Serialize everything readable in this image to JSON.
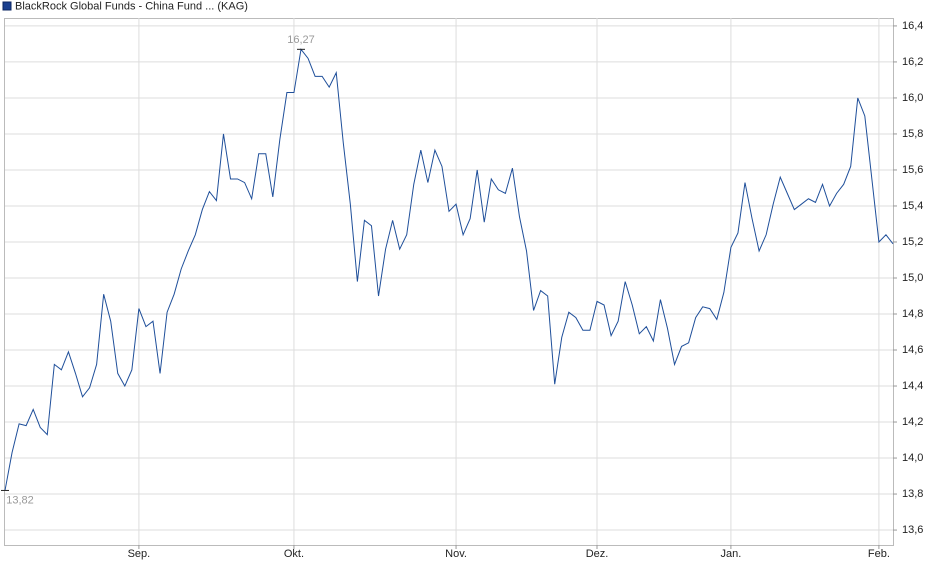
{
  "chart_data": {
    "type": "line",
    "series": [
      {
        "name": "BlackRock Global Funds - China Fund ... (KAG)",
        "color": "#1f4f9a",
        "values": [
          13.82,
          14.03,
          14.19,
          14.18,
          14.27,
          14.17,
          14.13,
          14.52,
          14.49,
          14.59,
          14.47,
          14.34,
          14.39,
          14.52,
          14.91,
          14.76,
          14.47,
          14.4,
          14.49,
          14.83,
          14.73,
          14.76,
          14.47,
          14.81,
          14.91,
          15.05,
          15.15,
          15.24,
          15.38,
          15.48,
          15.43,
          15.8,
          15.55,
          15.55,
          15.53,
          15.44,
          15.69,
          15.69,
          15.45,
          15.77,
          16.03,
          16.03,
          16.27,
          16.22,
          16.12,
          16.12,
          16.06,
          16.14,
          15.75,
          15.41,
          14.98,
          15.32,
          15.29,
          14.9,
          15.16,
          15.32,
          15.16,
          15.24,
          15.52,
          15.71,
          15.53,
          15.71,
          15.62,
          15.37,
          15.41,
          15.24,
          15.33,
          15.6,
          15.31,
          15.55,
          15.49,
          15.47,
          15.61,
          15.34,
          15.15,
          14.82,
          14.93,
          14.9,
          14.41,
          14.67,
          14.81,
          14.78,
          14.71,
          14.71,
          14.87,
          14.85,
          14.68,
          14.76,
          14.98,
          14.85,
          14.69,
          14.73,
          14.65,
          14.88,
          14.72,
          14.52,
          14.62,
          14.64,
          14.78,
          14.84,
          14.83,
          14.77,
          14.92,
          15.17,
          15.25,
          15.53,
          15.33,
          15.15,
          15.24,
          15.41,
          15.56,
          15.47,
          15.38,
          15.41,
          15.44,
          15.42,
          15.52,
          15.4,
          15.47,
          15.52,
          15.62,
          16.0,
          15.9,
          15.55,
          15.2,
          15.24,
          15.19
        ]
      }
    ],
    "categories": [
      null,
      null,
      null,
      null,
      null,
      null,
      null,
      null,
      null,
      null,
      null,
      null,
      null,
      null,
      null,
      null,
      null,
      null,
      null,
      "Sep.",
      null,
      null,
      null,
      null,
      null,
      null,
      null,
      null,
      null,
      null,
      null,
      null,
      null,
      null,
      null,
      null,
      null,
      null,
      null,
      null,
      null,
      "Okt.",
      null,
      null,
      null,
      null,
      null,
      null,
      null,
      null,
      null,
      null,
      null,
      null,
      null,
      null,
      null,
      null,
      null,
      null,
      null,
      null,
      null,
      null,
      "Nov.",
      null,
      null,
      null,
      null,
      null,
      null,
      null,
      null,
      null,
      null,
      null,
      null,
      null,
      null,
      null,
      null,
      null,
      null,
      null,
      "Dez.",
      null,
      null,
      null,
      null,
      null,
      null,
      null,
      null,
      null,
      null,
      null,
      null,
      null,
      null,
      null,
      null,
      null,
      null,
      "Jan.",
      null,
      null,
      null,
      null,
      null,
      null,
      null,
      null,
      null,
      null,
      null,
      null,
      null,
      null,
      null,
      null,
      null,
      null,
      null,
      null,
      "Feb.",
      null,
      null
    ],
    "annotations": [
      {
        "label": "16,27",
        "value": 16.27
      },
      {
        "label": "13,82",
        "value": 13.82
      }
    ],
    "ylim": [
      13.517,
      16.444
    ],
    "yticks": [
      {
        "value": 13.6,
        "label": "13,6"
      },
      {
        "value": 13.8,
        "label": "13,8"
      },
      {
        "value": 14.0,
        "label": "14,0"
      },
      {
        "value": 14.2,
        "label": "14,2"
      },
      {
        "value": 14.4,
        "label": "14,4"
      },
      {
        "value": 14.6,
        "label": "14,6"
      },
      {
        "value": 14.8,
        "label": "14,8"
      },
      {
        "value": 15.0,
        "label": "15,0"
      },
      {
        "value": 15.2,
        "label": "15,2"
      },
      {
        "value": 15.4,
        "label": "15,4"
      },
      {
        "value": 15.6,
        "label": "15,6"
      },
      {
        "value": 15.8,
        "label": "15,8"
      },
      {
        "value": 16.0,
        "label": "16,0"
      },
      {
        "value": 16.2,
        "label": "16,2"
      },
      {
        "value": 16.4,
        "label": "16,4"
      }
    ],
    "grid": true
  }
}
